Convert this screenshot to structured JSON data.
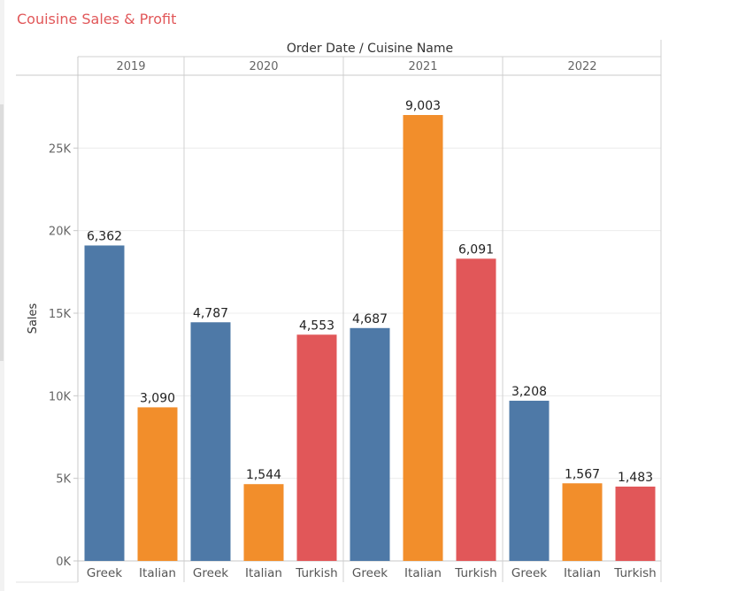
{
  "title": "Couisine Sales & Profit",
  "chart_data": {
    "type": "bar",
    "header": "Order Date  /  Cuisine Name",
    "ylabel": "Sales",
    "ylim": [
      0,
      27000
    ],
    "yticks": [
      0,
      5000,
      10000,
      15000,
      20000,
      25000
    ],
    "ytick_labels": [
      "0K",
      "5K",
      "10K",
      "15K",
      "20K",
      "25K"
    ],
    "colors": {
      "Greek": "#4e79a7",
      "Italian": "#f28e2b",
      "Turkish": "#e15759"
    },
    "groups": [
      {
        "year": "2019",
        "bars": [
          {
            "cuisine": "Greek",
            "sales": 19100,
            "label": "6,362"
          },
          {
            "cuisine": "Italian",
            "sales": 9300,
            "label": "3,090"
          }
        ]
      },
      {
        "year": "2020",
        "bars": [
          {
            "cuisine": "Greek",
            "sales": 14450,
            "label": "4,787"
          },
          {
            "cuisine": "Italian",
            "sales": 4650,
            "label": "1,544"
          },
          {
            "cuisine": "Turkish",
            "sales": 13700,
            "label": "4,553"
          }
        ]
      },
      {
        "year": "2021",
        "bars": [
          {
            "cuisine": "Greek",
            "sales": 14100,
            "label": "4,687"
          },
          {
            "cuisine": "Italian",
            "sales": 27000,
            "label": "9,003"
          },
          {
            "cuisine": "Turkish",
            "sales": 18300,
            "label": "6,091"
          }
        ]
      },
      {
        "year": "2022",
        "bars": [
          {
            "cuisine": "Greek",
            "sales": 9700,
            "label": "3,208"
          },
          {
            "cuisine": "Italian",
            "sales": 4700,
            "label": "1,567"
          },
          {
            "cuisine": "Turkish",
            "sales": 4500,
            "label": "1,483"
          }
        ]
      }
    ]
  }
}
